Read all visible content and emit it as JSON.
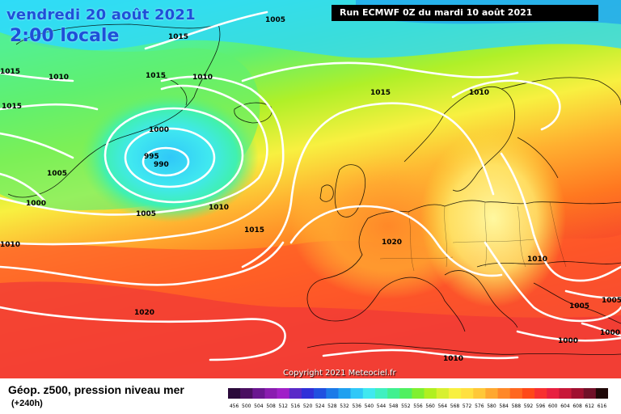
{
  "header": {
    "date": "vendredi 20 août 2021",
    "time": "2:00 locale",
    "run": "Run ECMWF 0Z du mardi 10 août 2021"
  },
  "footer": {
    "title": "Géop. z500, pression niveau mer",
    "lead": "(+240h)",
    "copyright": "Copyright 2021 Meteociel.fr"
  },
  "isobar_labels": [
    "1005",
    "1015",
    "1010",
    "1010",
    "1015",
    "1015",
    "1015",
    "1010",
    "1000",
    "995",
    "990",
    "1005",
    "1000",
    "1005",
    "1010",
    "1015",
    "1020",
    "1010",
    "1010",
    "1020",
    "1005",
    "1000",
    "1010"
  ],
  "scale": {
    "values": [
      "456",
      "500",
      "504",
      "508",
      "512",
      "516",
      "520",
      "524",
      "528",
      "532",
      "536",
      "540",
      "544",
      "548",
      "552",
      "556",
      "560",
      "564",
      "568",
      "572",
      "576",
      "580",
      "584",
      "588",
      "592",
      "596",
      "600",
      "604",
      "608",
      "612",
      "616"
    ],
    "colors": [
      "#2a0a3a",
      "#4a0f60",
      "#6a1690",
      "#8a1cb0",
      "#a020c8",
      "#5a2ac8",
      "#3030d8",
      "#2050e0",
      "#1c7ae8",
      "#20a0f0",
      "#30c8f8",
      "#40e8f0",
      "#40f0c0",
      "#40f090",
      "#50f060",
      "#80f030",
      "#b0f020",
      "#d8f030",
      "#f8f040",
      "#ffe040",
      "#ffc838",
      "#ffa830",
      "#ff8828",
      "#ff6820",
      "#ff4818",
      "#f83030",
      "#e82040",
      "#c81838",
      "#a01030",
      "#701028",
      "#200808"
    ]
  }
}
